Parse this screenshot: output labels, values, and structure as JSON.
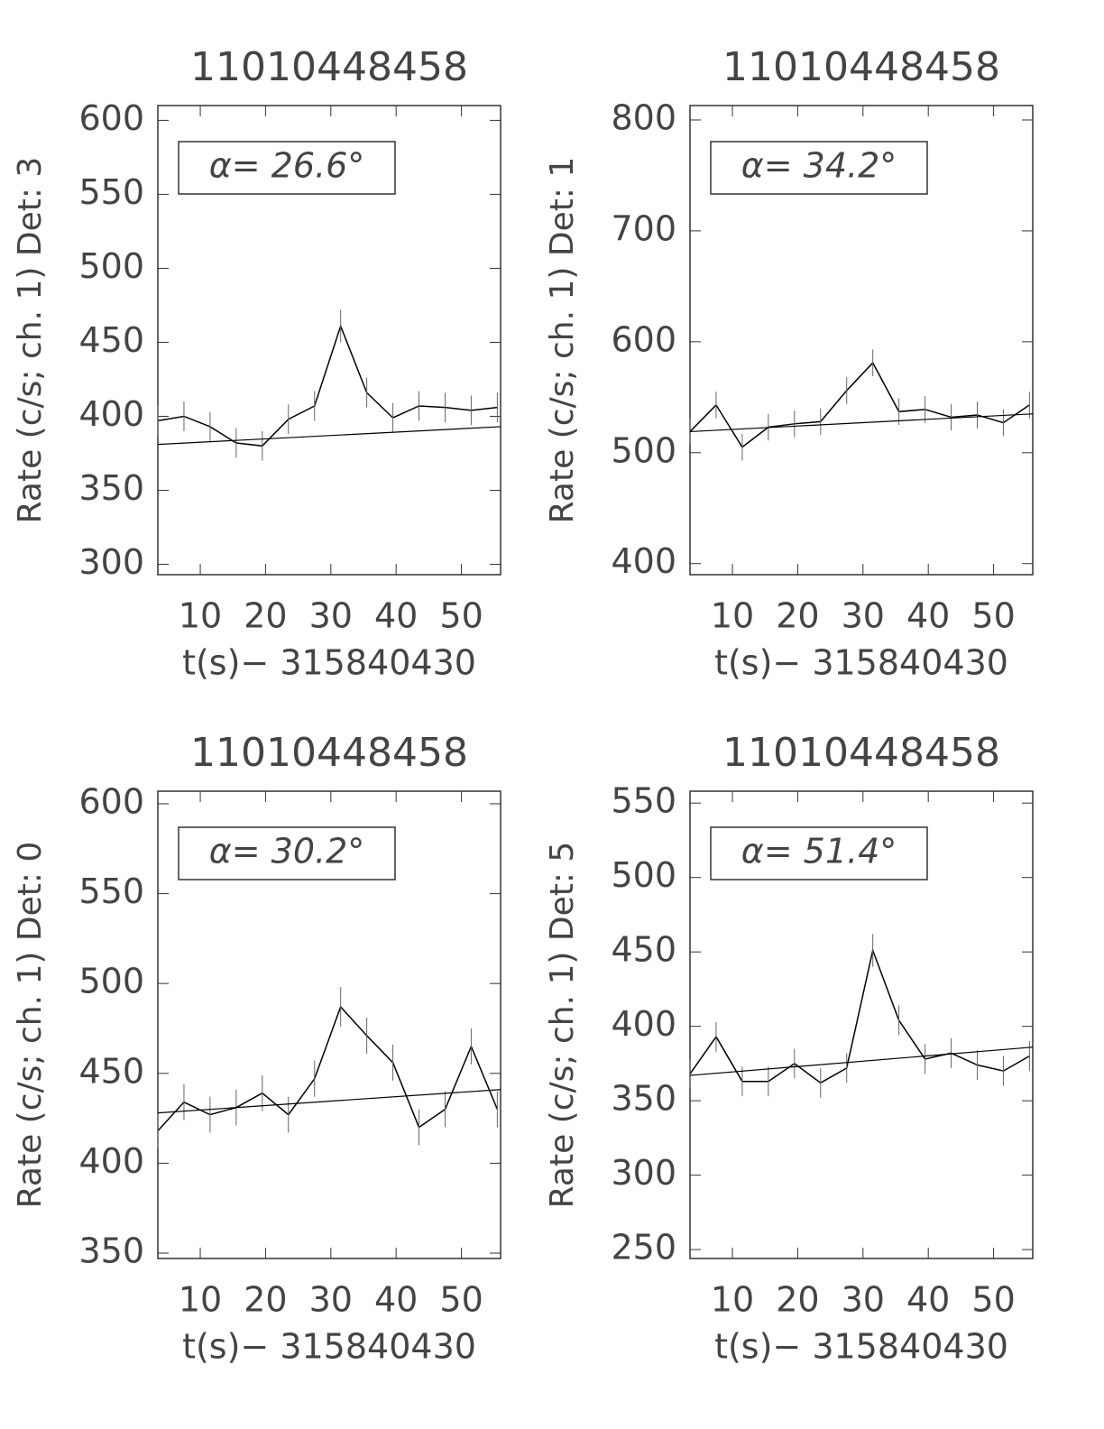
{
  "chart_data": [
    {
      "type": "line",
      "title": "11010448458",
      "y_label": "Rate (c/s; ch. 1) Det: 3",
      "x_label": "t(s)− 315840430",
      "annotation": "α= 26.6°",
      "x": [
        3.5,
        7.5,
        11.5,
        15.5,
        19.5,
        23.5,
        27.5,
        31.5,
        35.5,
        39.5,
        43.5,
        47.5,
        51.5,
        55.5
      ],
      "values": [
        397,
        400,
        393,
        382,
        380,
        398,
        407,
        461,
        416,
        399,
        407,
        406,
        404,
        406
      ],
      "errors": [
        10,
        10,
        10,
        10,
        10,
        10,
        10,
        11,
        10,
        10,
        10,
        10,
        10,
        10
      ],
      "fit_x": [
        3.5,
        56
      ],
      "fit_values": [
        381,
        393
      ],
      "xlim": [
        3.5,
        56
      ],
      "xticks": [
        10,
        20,
        30,
        40,
        50
      ],
      "ylim": [
        293,
        610
      ],
      "yticks": [
        300,
        350,
        400,
        450,
        500,
        550,
        600
      ],
      "color": "#000000"
    },
    {
      "type": "line",
      "title": "11010448458",
      "y_label": "Rate (c/s; ch. 1) Det: 1",
      "x_label": "t(s)− 315840430",
      "annotation": "α= 34.2°",
      "x": [
        3.5,
        7.5,
        11.5,
        15.5,
        19.5,
        23.5,
        27.5,
        31.5,
        35.5,
        39.5,
        43.5,
        47.5,
        51.5,
        55.5
      ],
      "values": [
        519,
        543,
        505,
        523,
        526,
        528,
        556,
        581,
        537,
        539,
        532,
        534,
        527,
        543
      ],
      "errors": [
        12,
        12,
        12,
        12,
        12,
        12,
        12,
        12,
        12,
        12,
        12,
        12,
        12,
        12
      ],
      "fit_x": [
        3.5,
        56
      ],
      "fit_values": [
        519,
        535
      ],
      "xlim": [
        3.5,
        56
      ],
      "xticks": [
        10,
        20,
        30,
        40,
        50
      ],
      "ylim": [
        390,
        813
      ],
      "yticks": [
        400,
        500,
        600,
        700,
        800
      ],
      "color": "#000000"
    },
    {
      "type": "line",
      "title": "11010448458",
      "y_label": "Rate (c/s; ch. 1) Det: 0",
      "x_label": "t(s)− 315840430",
      "annotation": "α= 30.2°",
      "x": [
        3.5,
        7.5,
        11.5,
        15.5,
        19.5,
        23.5,
        27.5,
        31.5,
        35.5,
        39.5,
        43.5,
        47.5,
        51.5,
        55.5
      ],
      "values": [
        418,
        434,
        427,
        431,
        439,
        427,
        447,
        487,
        471,
        456,
        420,
        430,
        465,
        430
      ],
      "errors": [
        10,
        10,
        10,
        10,
        10,
        10,
        10,
        11,
        10,
        10,
        10,
        10,
        10,
        10
      ],
      "fit_x": [
        3.5,
        56
      ],
      "fit_values": [
        428,
        441
      ],
      "xlim": [
        3.5,
        56
      ],
      "xticks": [
        10,
        20,
        30,
        40,
        50
      ],
      "ylim": [
        347,
        607
      ],
      "yticks": [
        350,
        400,
        450,
        500,
        550,
        600
      ],
      "color": "#000000"
    },
    {
      "type": "line",
      "title": "11010448458",
      "y_label": "Rate (c/s; ch. 1) Det: 5",
      "x_label": "t(s)− 315840430",
      "annotation": "α= 51.4°",
      "x": [
        3.5,
        7.5,
        11.5,
        15.5,
        19.5,
        23.5,
        27.5,
        31.5,
        35.5,
        39.5,
        43.5,
        47.5,
        51.5,
        55.5
      ],
      "values": [
        368,
        393,
        363,
        363,
        375,
        362,
        372,
        451,
        404,
        378,
        382,
        374,
        370,
        380
      ],
      "errors": [
        10,
        10,
        10,
        10,
        10,
        10,
        10,
        11,
        10,
        10,
        10,
        10,
        10,
        10
      ],
      "fit_x": [
        3.5,
        56
      ],
      "fit_values": [
        367,
        386
      ],
      "xlim": [
        3.5,
        56
      ],
      "xticks": [
        10,
        20,
        30,
        40,
        50
      ],
      "ylim": [
        244,
        558
      ],
      "yticks": [
        250,
        300,
        350,
        400,
        450,
        500,
        550
      ],
      "color": "#000000"
    }
  ]
}
